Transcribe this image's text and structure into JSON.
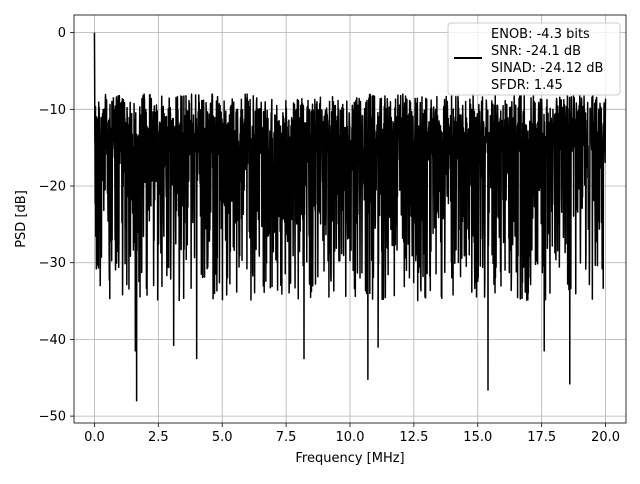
{
  "chart_data": {
    "type": "line",
    "title": "",
    "xlabel": "Frequency [MHz]",
    "ylabel": "PSD [dB]",
    "xlim": [
      -0.8,
      20.8
    ],
    "ylim": [
      -50.9,
      2.3
    ],
    "xticks": [
      0.0,
      2.5,
      5.0,
      7.5,
      10.0,
      12.5,
      15.0,
      17.5,
      20.0
    ],
    "xtick_labels": [
      "0.0",
      "2.5",
      "5.0",
      "7.5",
      "10.0",
      "12.5",
      "15.0",
      "17.5",
      "20.0"
    ],
    "yticks": [
      0,
      -10,
      -20,
      -30,
      -40,
      -50
    ],
    "ytick_labels": [
      "0",
      "−10",
      "−20",
      "−30",
      "−40",
      "−50"
    ],
    "grid": true,
    "legend": {
      "placement": "top-right",
      "entries": [
        "ENOB: -4.3 bits",
        "SNR: -24.1 dB",
        "SINAD: -24.12 dB",
        "SFDR: 1.45"
      ]
    },
    "series": [
      {
        "color": "#000000",
        "x_range": [
          0.0,
          20.0
        ],
        "approx_upper_envelope_db": -8,
        "approx_median_db": -18,
        "approx_lower_envelope_db": -30,
        "peak": {
          "x": 0.0,
          "y": 0.0
        },
        "deep_nulls": [
          {
            "x": 1.65,
            "y": -48.0
          },
          {
            "x": 1.6,
            "y": -41.5
          },
          {
            "x": 4.0,
            "y": -42.5
          },
          {
            "x": 8.2,
            "y": -42.5
          },
          {
            "x": 10.7,
            "y": -45.2
          },
          {
            "x": 15.4,
            "y": -46.6
          },
          {
            "x": 18.6,
            "y": -45.8
          },
          {
            "x": 17.6,
            "y": -41.5
          },
          {
            "x": 11.1,
            "y": -41.0
          },
          {
            "x": 3.1,
            "y": -40.8
          }
        ]
      }
    ]
  }
}
